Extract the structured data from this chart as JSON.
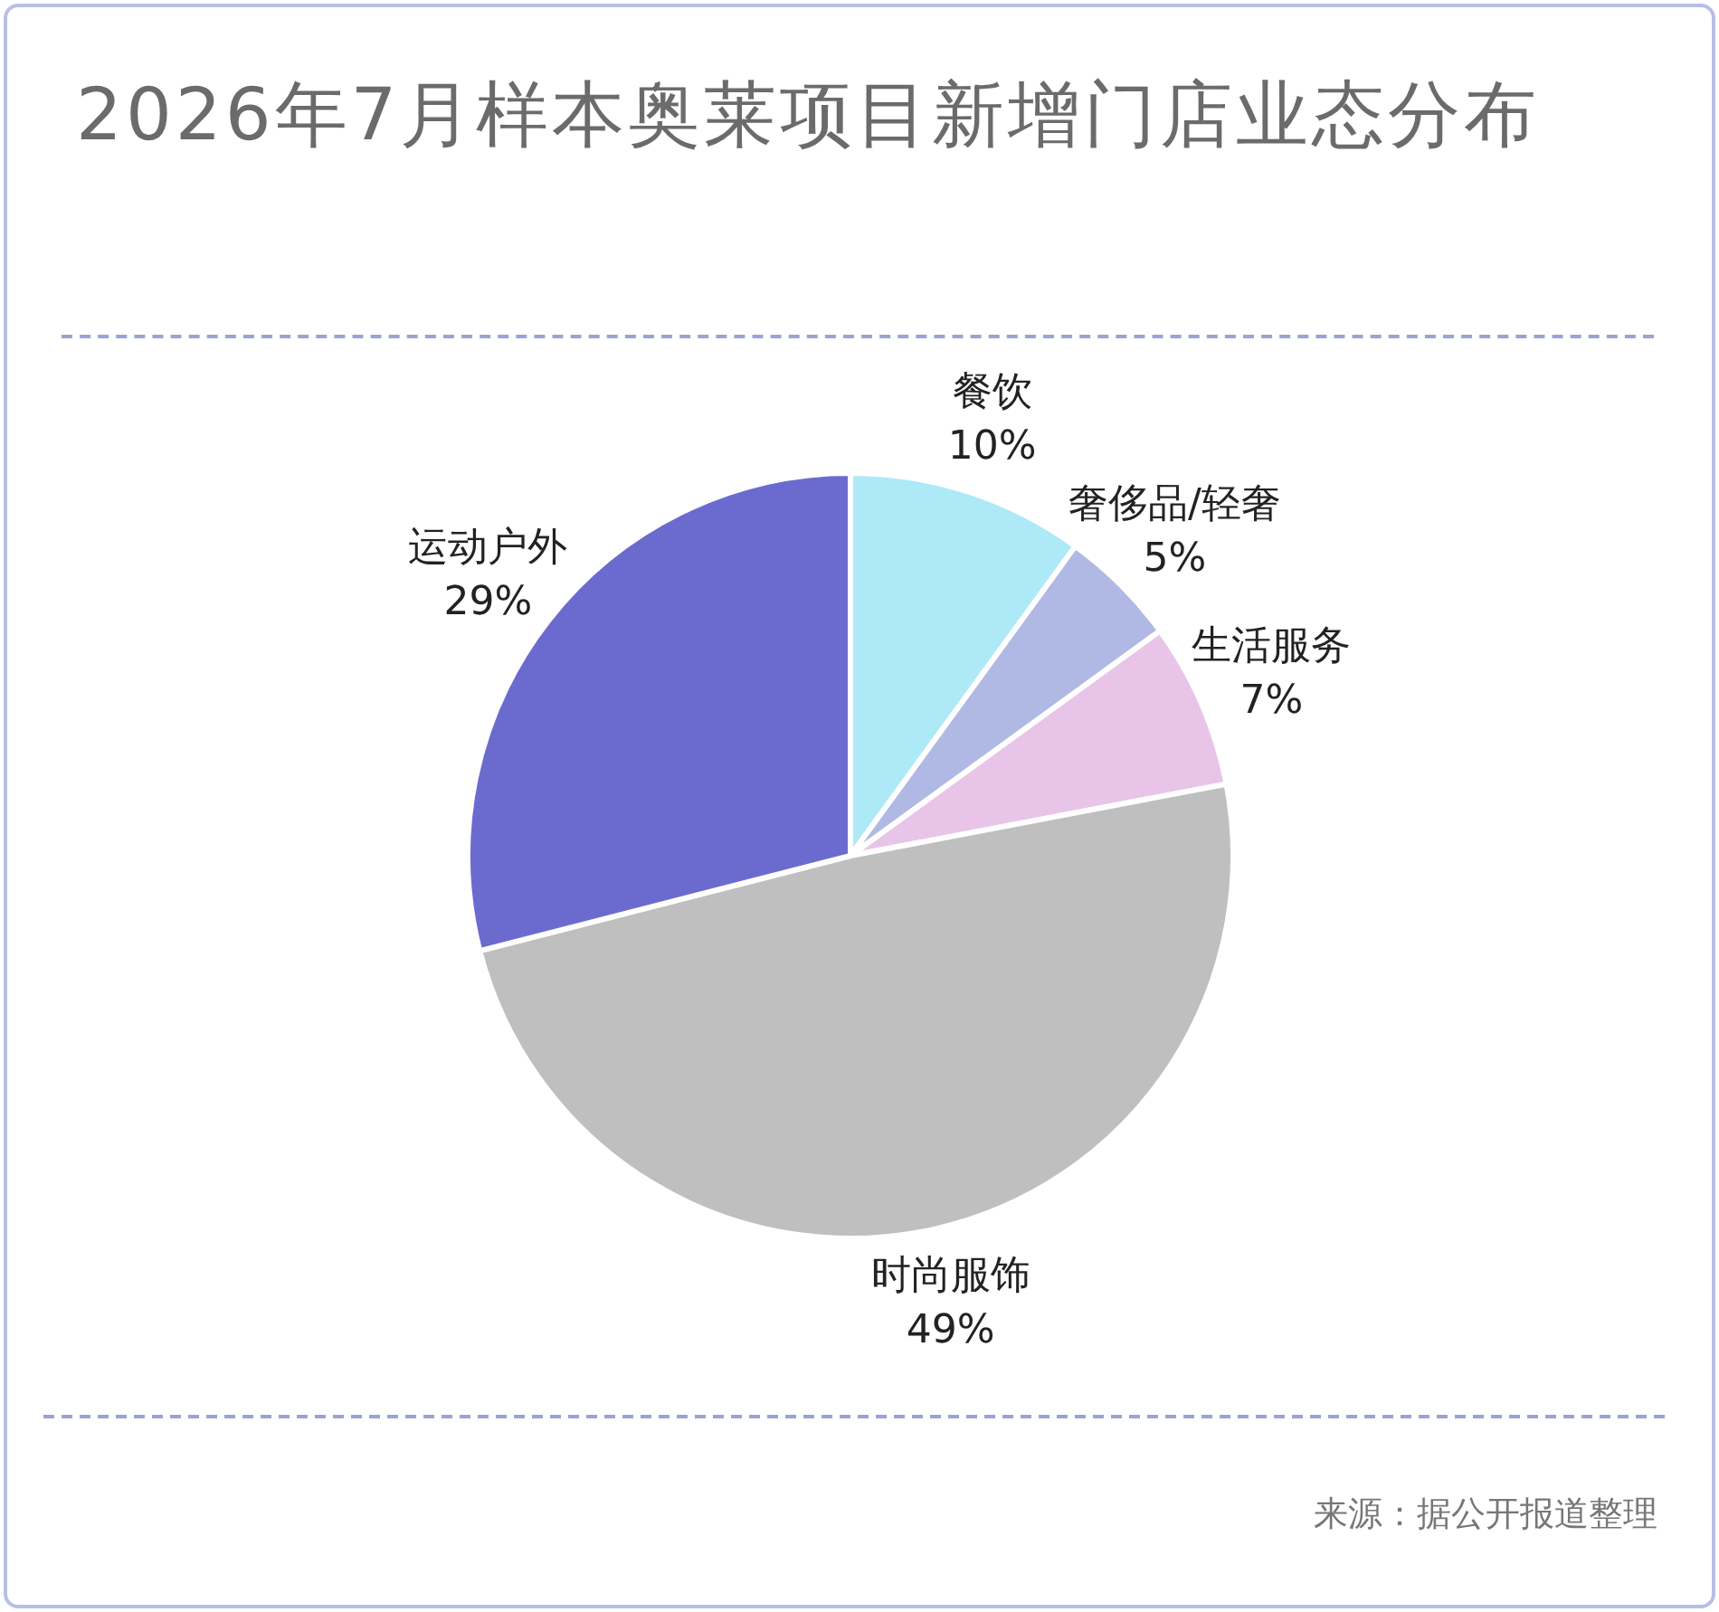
{
  "chart_data": {
    "type": "pie",
    "title": "2026年7月样本奥莱项目新增门店业态分布",
    "categories": [
      "餐饮",
      "奢侈品/轻奢",
      "生活服务",
      "时尚服饰",
      "运动户外"
    ],
    "values": [
      10,
      5,
      7,
      49,
      29
    ],
    "value_labels": [
      "10%",
      "5%",
      "7%",
      "49%",
      "29%"
    ],
    "colors": [
      "#aee9f7",
      "#b0b9e3",
      "#e8c5e8",
      "#bfbfbf",
      "#6b6bcf"
    ],
    "legend": false,
    "annotations": [
      "来源：据公开报道整理"
    ]
  }
}
